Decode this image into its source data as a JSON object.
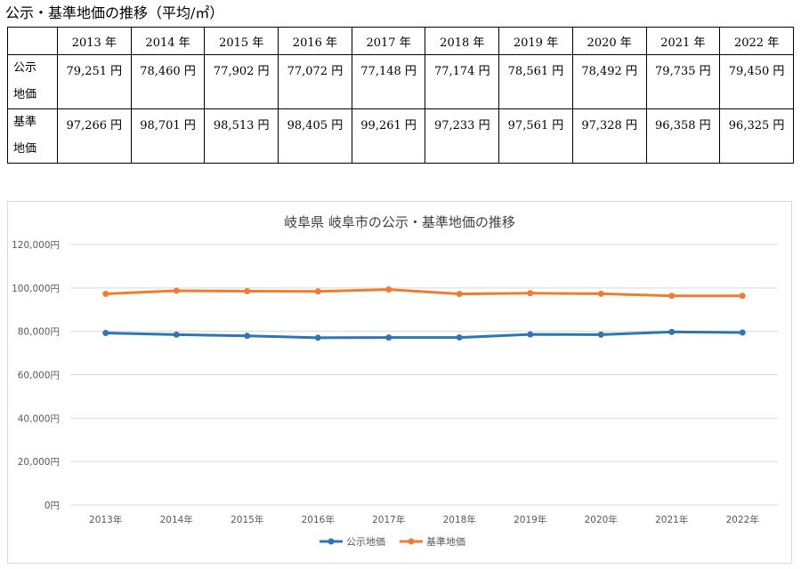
{
  "heading": "公示・基準地価の推移（平均/㎡）",
  "table": {
    "years": [
      "2013 年",
      "2014 年",
      "2015 年",
      "2016 年",
      "2017 年",
      "2018 年",
      "2019 年",
      "2020 年",
      "2021 年",
      "2022 年"
    ],
    "rows": [
      {
        "label_line1": "公示",
        "label_line2": "地価",
        "values": [
          "79,251 円",
          "78,460 円",
          "77,902 円",
          "77,072 円",
          "77,148 円",
          "77,174 円",
          "78,561 円",
          "78,492 円",
          "79,735 円",
          "79,450 円"
        ]
      },
      {
        "label_line1": "基準",
        "label_line2": "地価",
        "values": [
          "97,266 円",
          "98,701 円",
          "98,513 円",
          "98,405 円",
          "99,261 円",
          "97,233 円",
          "97,561 円",
          "97,328 円",
          "96,358 円",
          "96,325 円"
        ]
      }
    ]
  },
  "chart_data": {
    "type": "line",
    "title": "岐阜県 岐阜市の公示・基準地価の推移",
    "categories": [
      "2013年",
      "2014年",
      "2015年",
      "2016年",
      "2017年",
      "2018年",
      "2019年",
      "2020年",
      "2021年",
      "2022年"
    ],
    "ylim": [
      0,
      120000
    ],
    "yticks": [
      0,
      20000,
      40000,
      60000,
      80000,
      100000,
      120000
    ],
    "ytick_labels": [
      "0円",
      "20,000円",
      "40,000円",
      "60,000円",
      "80,000円",
      "100,000円",
      "120,000円"
    ],
    "grid": true,
    "legend_position": "bottom",
    "series": [
      {
        "name": "公示地価",
        "color": "#2e75b6",
        "values": [
          79251,
          78460,
          77902,
          77072,
          77148,
          77174,
          78561,
          78492,
          79735,
          79450
        ]
      },
      {
        "name": "基準地価",
        "color": "#ed7d31",
        "values": [
          97266,
          98701,
          98513,
          98405,
          99261,
          97233,
          97561,
          97328,
          96358,
          96325
        ]
      }
    ]
  }
}
